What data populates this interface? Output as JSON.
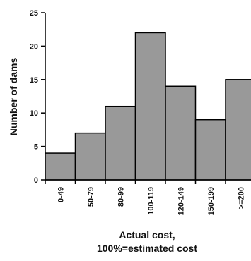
{
  "chart_data": {
    "type": "bar",
    "categories": [
      "0-49",
      "50-79",
      "80-99",
      "100-119",
      "120-149",
      "150-199",
      ">=200"
    ],
    "values": [
      4,
      7,
      11,
      22,
      14,
      9,
      15
    ],
    "xlabel": "Actual cost,",
    "xlabel_line2": "100%=estimated cost",
    "ylabel": "Number of dams",
    "ylim": [
      0,
      25
    ],
    "yticks": [
      0,
      5,
      10,
      15,
      20,
      25
    ],
    "bar_color": "#999999",
    "grid": false,
    "legend": "none"
  }
}
